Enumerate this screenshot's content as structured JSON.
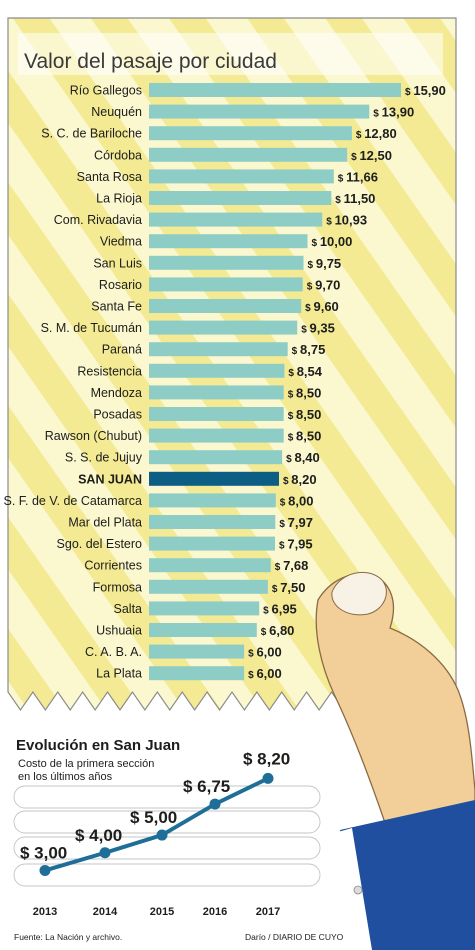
{
  "chart_data": [
    {
      "type": "bar",
      "title": "Valor del pasaje por ciudad",
      "orientation": "horizontal",
      "currency_prefix": "$",
      "highlight": "SAN JUAN",
      "categories": [
        "Río Gallegos",
        "Neuquén",
        "S. C. de Bariloche",
        "Córdoba",
        "Santa Rosa",
        "La Rioja",
        "Com. Rivadavia",
        "Viedma",
        "San Luis",
        "Rosario",
        "Santa Fe",
        "S. M. de Tucumán",
        "Paraná",
        "Resistencia",
        "Mendoza",
        "Posadas",
        "Rawson (Chubut)",
        "S. S. de Jujuy",
        "SAN JUAN",
        "S. F. de V. de Catamarca",
        "Mar del Plata",
        "Sgo. del Estero",
        "Corrientes",
        "Formosa",
        "Salta",
        "Ushuaia",
        "C. A. B. A.",
        "La Plata"
      ],
      "values": [
        15.9,
        13.9,
        12.8,
        12.5,
        11.66,
        11.5,
        10.93,
        10.0,
        9.75,
        9.7,
        9.6,
        9.35,
        8.75,
        8.54,
        8.5,
        8.5,
        8.5,
        8.4,
        8.2,
        8.0,
        7.97,
        7.95,
        7.68,
        7.5,
        6.95,
        6.8,
        6.0,
        6.0
      ],
      "value_labels": [
        "15,90",
        "13,90",
        "12,80",
        "12,50",
        "11,66",
        "11,50",
        "10,93",
        "10,00",
        "9,75",
        "9,70",
        "9,60",
        "9,35",
        "8,75",
        "8,54",
        "8,50",
        "8,50",
        "8,50",
        "8,40",
        "8,20",
        "8,00",
        "7,97",
        "7,95",
        "7,68",
        "7,50",
        "6,95",
        "6,80",
        "6,00",
        "6,00"
      ],
      "colors": {
        "bar": "#8ecdc6",
        "highlight_bar": "#0d5e84"
      }
    },
    {
      "type": "line",
      "title": "Evolución en San Juan",
      "subtitle": "Costo de la primera sección en los últimos años",
      "x": [
        "2013",
        "2014",
        "2015",
        "2016",
        "2017"
      ],
      "values": [
        3.0,
        4.0,
        5.0,
        6.75,
        8.2
      ],
      "value_labels": [
        "$ 3,00",
        "$ 4,00",
        "$ 5,00",
        "$ 6,75",
        "$ 8,20"
      ],
      "colors": {
        "line": "#1f6e98"
      }
    }
  ],
  "footer": {
    "source": "Fuente: La Nación y archivo.",
    "credit": "Darío / DIARIO DE CUYO"
  }
}
